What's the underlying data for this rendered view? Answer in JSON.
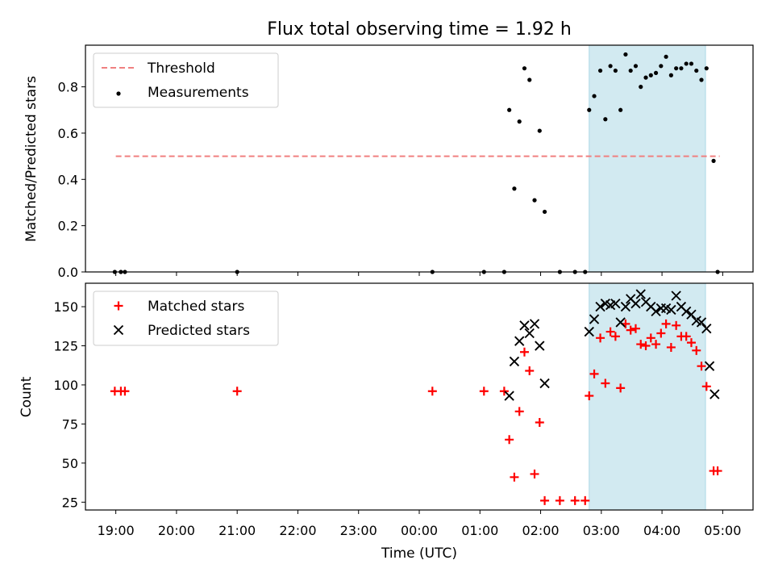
{
  "chart_data": [
    {
      "type": "scatter",
      "title": "Flux total observing time = 1.92 h",
      "xlabel": "",
      "ylabel": "Matched/Predicted stars",
      "xlim": [
        "18:30",
        "05:30"
      ],
      "ylim": [
        0,
        0.98
      ],
      "yticks": [
        "0.0",
        "0.2",
        "0.4",
        "0.6",
        "0.8"
      ],
      "grid": false,
      "legend": "top-left",
      "shaded_span": {
        "from": "02:48",
        "to": "04:43",
        "color": "#add8e6"
      },
      "series": [
        {
          "name": "Threshold",
          "style": "dashed-line",
          "color": "#f08080",
          "points": [
            {
              "x": "19:00",
              "y": 0.5
            },
            {
              "x": "04:57",
              "y": 0.5
            }
          ]
        },
        {
          "name": "Measurements",
          "style": "dot",
          "color": "#000000",
          "points": [
            {
              "x": "18:59",
              "y": 0.0
            },
            {
              "x": "19:05",
              "y": 0.0
            },
            {
              "x": "19:09",
              "y": 0.0
            },
            {
              "x": "21:00",
              "y": 0.0
            },
            {
              "x": "00:13",
              "y": 0.0
            },
            {
              "x": "01:04",
              "y": 0.0
            },
            {
              "x": "01:24",
              "y": 0.0
            },
            {
              "x": "01:29",
              "y": 0.7
            },
            {
              "x": "01:34",
              "y": 0.36
            },
            {
              "x": "01:39",
              "y": 0.65
            },
            {
              "x": "01:44",
              "y": 0.88
            },
            {
              "x": "01:49",
              "y": 0.83
            },
            {
              "x": "01:54",
              "y": 0.31
            },
            {
              "x": "01:59",
              "y": 0.61
            },
            {
              "x": "02:04",
              "y": 0.26
            },
            {
              "x": "02:19",
              "y": 0.0
            },
            {
              "x": "02:34",
              "y": 0.0
            },
            {
              "x": "02:44",
              "y": 0.0
            },
            {
              "x": "02:48",
              "y": 0.7
            },
            {
              "x": "02:53",
              "y": 0.76
            },
            {
              "x": "02:59",
              "y": 0.87
            },
            {
              "x": "03:04",
              "y": 0.66
            },
            {
              "x": "03:09",
              "y": 0.89
            },
            {
              "x": "03:14",
              "y": 0.87
            },
            {
              "x": "03:19",
              "y": 0.7
            },
            {
              "x": "03:24",
              "y": 0.94
            },
            {
              "x": "03:29",
              "y": 0.87
            },
            {
              "x": "03:34",
              "y": 0.89
            },
            {
              "x": "03:39",
              "y": 0.8
            },
            {
              "x": "03:44",
              "y": 0.84
            },
            {
              "x": "03:49",
              "y": 0.85
            },
            {
              "x": "03:54",
              "y": 0.86
            },
            {
              "x": "03:59",
              "y": 0.89
            },
            {
              "x": "04:04",
              "y": 0.93
            },
            {
              "x": "04:09",
              "y": 0.85
            },
            {
              "x": "04:14",
              "y": 0.88
            },
            {
              "x": "04:19",
              "y": 0.88
            },
            {
              "x": "04:24",
              "y": 0.9
            },
            {
              "x": "04:29",
              "y": 0.9
            },
            {
              "x": "04:34",
              "y": 0.87
            },
            {
              "x": "04:39",
              "y": 0.83
            },
            {
              "x": "04:44",
              "y": 0.88
            },
            {
              "x": "04:51",
              "y": 0.48
            },
            {
              "x": "04:55",
              "y": 0.0
            }
          ]
        }
      ]
    },
    {
      "type": "scatter",
      "title": "",
      "xlabel": "Time (UTC)",
      "ylabel": "Count",
      "xlim": [
        "18:30",
        "05:30"
      ],
      "ylim": [
        20,
        165
      ],
      "yticks": [
        "25",
        "50",
        "75",
        "100",
        "125",
        "150"
      ],
      "xticks": [
        "19:00",
        "20:00",
        "21:00",
        "22:00",
        "23:00",
        "00:00",
        "01:00",
        "02:00",
        "03:00",
        "04:00",
        "05:00"
      ],
      "grid": false,
      "legend": "top-left",
      "shaded_span": {
        "from": "02:48",
        "to": "04:43",
        "color": "#add8e6"
      },
      "series": [
        {
          "name": "Matched stars",
          "style": "plus",
          "color": "#ff0000",
          "points": [
            {
              "x": "18:59",
              "y": 96
            },
            {
              "x": "19:05",
              "y": 96
            },
            {
              "x": "19:09",
              "y": 96
            },
            {
              "x": "21:00",
              "y": 96
            },
            {
              "x": "00:13",
              "y": 96
            },
            {
              "x": "01:04",
              "y": 96
            },
            {
              "x": "01:24",
              "y": 96
            },
            {
              "x": "01:29",
              "y": 65
            },
            {
              "x": "01:34",
              "y": 41
            },
            {
              "x": "01:39",
              "y": 83
            },
            {
              "x": "01:44",
              "y": 121
            },
            {
              "x": "01:49",
              "y": 109
            },
            {
              "x": "01:54",
              "y": 43
            },
            {
              "x": "01:59",
              "y": 76
            },
            {
              "x": "02:04",
              "y": 26
            },
            {
              "x": "02:19",
              "y": 26
            },
            {
              "x": "02:34",
              "y": 26
            },
            {
              "x": "02:44",
              "y": 26
            },
            {
              "x": "02:48",
              "y": 93
            },
            {
              "x": "02:53",
              "y": 107
            },
            {
              "x": "02:59",
              "y": 130
            },
            {
              "x": "03:04",
              "y": 101
            },
            {
              "x": "03:09",
              "y": 134
            },
            {
              "x": "03:14",
              "y": 131
            },
            {
              "x": "03:19",
              "y": 98
            },
            {
              "x": "03:24",
              "y": 139
            },
            {
              "x": "03:29",
              "y": 135
            },
            {
              "x": "03:34",
              "y": 136
            },
            {
              "x": "03:39",
              "y": 126
            },
            {
              "x": "03:44",
              "y": 125
            },
            {
              "x": "03:49",
              "y": 130
            },
            {
              "x": "03:54",
              "y": 126
            },
            {
              "x": "03:59",
              "y": 133
            },
            {
              "x": "04:04",
              "y": 139
            },
            {
              "x": "04:09",
              "y": 124
            },
            {
              "x": "04:14",
              "y": 138
            },
            {
              "x": "04:19",
              "y": 131
            },
            {
              "x": "04:24",
              "y": 131
            },
            {
              "x": "04:29",
              "y": 127
            },
            {
              "x": "04:34",
              "y": 122
            },
            {
              "x": "04:39",
              "y": 112
            },
            {
              "x": "04:44",
              "y": 99
            },
            {
              "x": "04:51",
              "y": 45
            },
            {
              "x": "04:55",
              "y": 45
            }
          ]
        },
        {
          "name": "Predicted stars",
          "style": "x",
          "color": "#000000",
          "points": [
            {
              "x": "01:29",
              "y": 93
            },
            {
              "x": "01:34",
              "y": 115
            },
            {
              "x": "01:39",
              "y": 128
            },
            {
              "x": "01:44",
              "y": 138
            },
            {
              "x": "01:49",
              "y": 133
            },
            {
              "x": "01:54",
              "y": 139
            },
            {
              "x": "01:59",
              "y": 125
            },
            {
              "x": "02:04",
              "y": 101
            },
            {
              "x": "02:48",
              "y": 134
            },
            {
              "x": "02:53",
              "y": 142
            },
            {
              "x": "02:59",
              "y": 150
            },
            {
              "x": "03:04",
              "y": 152
            },
            {
              "x": "03:09",
              "y": 151
            },
            {
              "x": "03:14",
              "y": 152
            },
            {
              "x": "03:19",
              "y": 140
            },
            {
              "x": "03:24",
              "y": 150
            },
            {
              "x": "03:29",
              "y": 155
            },
            {
              "x": "03:34",
              "y": 152
            },
            {
              "x": "03:39",
              "y": 158
            },
            {
              "x": "03:44",
              "y": 153
            },
            {
              "x": "03:49",
              "y": 150
            },
            {
              "x": "03:54",
              "y": 147
            },
            {
              "x": "03:59",
              "y": 149
            },
            {
              "x": "04:04",
              "y": 149
            },
            {
              "x": "04:09",
              "y": 148
            },
            {
              "x": "04:14",
              "y": 157
            },
            {
              "x": "04:19",
              "y": 150
            },
            {
              "x": "04:24",
              "y": 147
            },
            {
              "x": "04:29",
              "y": 145
            },
            {
              "x": "04:34",
              "y": 141
            },
            {
              "x": "04:39",
              "y": 140
            },
            {
              "x": "04:44",
              "y": 136
            },
            {
              "x": "04:47",
              "y": 112
            },
            {
              "x": "04:52",
              "y": 94
            }
          ]
        }
      ]
    }
  ]
}
